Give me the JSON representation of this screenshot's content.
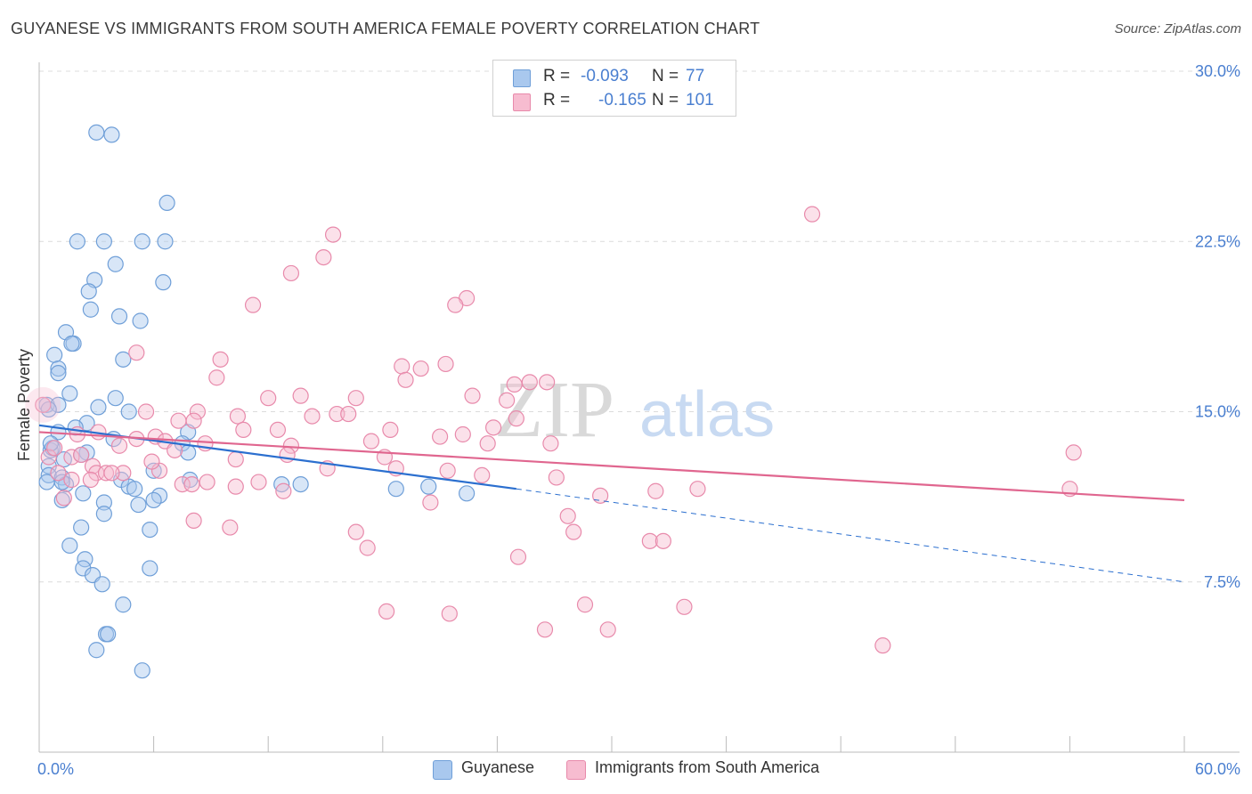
{
  "title": "GUYANESE VS IMMIGRANTS FROM SOUTH AMERICA FEMALE POVERTY CORRELATION CHART",
  "source": "Source: ZipAtlas.com",
  "legend": {
    "rows": [
      {
        "r_label": "R =",
        "r_value": "-0.093",
        "n_label": "N =",
        "n_value": "77"
      },
      {
        "r_label": "R =",
        "r_value": "-0.165",
        "n_label": "N =",
        "n_value": "101"
      }
    ]
  },
  "bottom_legend": [
    "Guyanese",
    "Immigrants from South America"
  ],
  "watermark": {
    "zip": "ZIP",
    "atlas": "atlas"
  },
  "colors": {
    "guyanese_fill": "#a9c8ee",
    "guyanese_stroke": "#6f9fd8",
    "guyanese_line": "#2b6fcf",
    "immig_fill": "#f7bcd0",
    "immig_stroke": "#e88aab",
    "immig_line": "#e0668f",
    "axis_label": "#4a7fd0",
    "grid": "#dcdcdc"
  },
  "chart_data": {
    "type": "scatter",
    "xlabel": "",
    "ylabel": "Female Poverty",
    "xlim": [
      0,
      60
    ],
    "ylim": [
      0,
      30
    ],
    "x_tick_labels": [
      "0.0%",
      "60.0%"
    ],
    "y_ticks": [
      7.5,
      15.0,
      22.5,
      30.0
    ],
    "y_tick_labels": [
      "7.5%",
      "15.0%",
      "22.5%",
      "30.0%"
    ],
    "grid": "horizontal dashed",
    "legend_placement": "top-center",
    "series": [
      {
        "name": "Guyanese",
        "trend": {
          "x0": 0,
          "y0": 14.4,
          "x1": 25,
          "y1": 11.6,
          "dashed_to": {
            "x": 60,
            "y": 7.5
          }
        },
        "points": [
          [
            3.0,
            27.3
          ],
          [
            3.8,
            27.2
          ],
          [
            6.7,
            24.2
          ],
          [
            2.0,
            22.5
          ],
          [
            3.4,
            22.5
          ],
          [
            5.4,
            22.5
          ],
          [
            6.6,
            22.5
          ],
          [
            4.0,
            21.5
          ],
          [
            2.9,
            20.8
          ],
          [
            6.5,
            20.7
          ],
          [
            2.6,
            20.3
          ],
          [
            2.7,
            19.5
          ],
          [
            4.2,
            19.2
          ],
          [
            5.3,
            19.0
          ],
          [
            1.4,
            18.5
          ],
          [
            1.8,
            18.0
          ],
          [
            1.7,
            18.0
          ],
          [
            0.8,
            17.5
          ],
          [
            4.4,
            17.3
          ],
          [
            1.0,
            16.9
          ],
          [
            1.0,
            16.7
          ],
          [
            1.6,
            15.8
          ],
          [
            4.0,
            15.6
          ],
          [
            0.4,
            15.3
          ],
          [
            1.0,
            15.3
          ],
          [
            3.1,
            15.2
          ],
          [
            4.7,
            15.0
          ],
          [
            2.5,
            14.5
          ],
          [
            1.9,
            14.3
          ],
          [
            7.8,
            14.1
          ],
          [
            3.9,
            13.8
          ],
          [
            7.5,
            13.6
          ],
          [
            0.6,
            13.3
          ],
          [
            0.7,
            13.4
          ],
          [
            2.5,
            13.2
          ],
          [
            7.8,
            13.2
          ],
          [
            1.3,
            12.9
          ],
          [
            0.5,
            12.6
          ],
          [
            6.0,
            12.4
          ],
          [
            0.5,
            12.2
          ],
          [
            1.2,
            12.1
          ],
          [
            4.3,
            12.0
          ],
          [
            7.9,
            12.0
          ],
          [
            1.4,
            11.8
          ],
          [
            12.7,
            11.8
          ],
          [
            13.7,
            11.8
          ],
          [
            18.7,
            11.6
          ],
          [
            20.4,
            11.7
          ],
          [
            0.4,
            11.9
          ],
          [
            4.7,
            11.7
          ],
          [
            1.2,
            11.9
          ],
          [
            2.3,
            11.4
          ],
          [
            6.3,
            11.3
          ],
          [
            1.2,
            11.1
          ],
          [
            3.4,
            11.0
          ],
          [
            6.0,
            11.1
          ],
          [
            5.2,
            10.9
          ],
          [
            22.4,
            11.4
          ],
          [
            3.4,
            10.5
          ],
          [
            2.2,
            9.9
          ],
          [
            5.8,
            9.8
          ],
          [
            1.6,
            9.1
          ],
          [
            2.4,
            8.5
          ],
          [
            2.3,
            8.1
          ],
          [
            5.8,
            8.1
          ],
          [
            2.8,
            7.8
          ],
          [
            3.3,
            7.4
          ],
          [
            4.4,
            6.5
          ],
          [
            3.5,
            5.2
          ],
          [
            3.6,
            5.2
          ],
          [
            3.0,
            4.5
          ],
          [
            5.4,
            3.6
          ],
          [
            1.0,
            14.1
          ],
          [
            0.6,
            13.6
          ],
          [
            0.5,
            15.1
          ],
          [
            5.0,
            11.6
          ],
          [
            2.2,
            13.1
          ]
        ]
      },
      {
        "name": "Immigrants from South America",
        "trend": {
          "x0": 0,
          "y0": 14.1,
          "x1": 60,
          "y1": 11.1
        },
        "points": [
          [
            40.5,
            23.7
          ],
          [
            15.4,
            22.8
          ],
          [
            14.9,
            21.8
          ],
          [
            13.2,
            21.1
          ],
          [
            22.4,
            20.0
          ],
          [
            11.2,
            19.7
          ],
          [
            21.8,
            19.7
          ],
          [
            5.1,
            17.6
          ],
          [
            9.5,
            17.3
          ],
          [
            21.3,
            17.1
          ],
          [
            19.0,
            17.0
          ],
          [
            20.0,
            16.9
          ],
          [
            9.3,
            16.5
          ],
          [
            19.2,
            16.4
          ],
          [
            24.9,
            16.2
          ],
          [
            25.7,
            16.3
          ],
          [
            26.6,
            16.3
          ],
          [
            12.0,
            15.6
          ],
          [
            13.7,
            15.7
          ],
          [
            16.6,
            15.6
          ],
          [
            22.7,
            15.7
          ],
          [
            24.5,
            15.5
          ],
          [
            5.6,
            15.0
          ],
          [
            8.3,
            15.0
          ],
          [
            10.4,
            14.8
          ],
          [
            14.3,
            14.8
          ],
          [
            15.6,
            14.9
          ],
          [
            16.2,
            14.9
          ],
          [
            25.0,
            14.7
          ],
          [
            7.3,
            14.6
          ],
          [
            8.1,
            14.6
          ],
          [
            23.8,
            14.3
          ],
          [
            10.7,
            14.2
          ],
          [
            12.5,
            14.2
          ],
          [
            18.4,
            14.2
          ],
          [
            3.1,
            14.1
          ],
          [
            21.0,
            13.9
          ],
          [
            22.2,
            14.0
          ],
          [
            5.1,
            13.8
          ],
          [
            6.1,
            13.9
          ],
          [
            6.6,
            13.7
          ],
          [
            8.7,
            13.6
          ],
          [
            17.4,
            13.7
          ],
          [
            23.5,
            13.6
          ],
          [
            26.8,
            13.6
          ],
          [
            4.2,
            13.5
          ],
          [
            13.2,
            13.5
          ],
          [
            7.1,
            13.3
          ],
          [
            13.0,
            13.1
          ],
          [
            18.1,
            13.0
          ],
          [
            0.5,
            13.0
          ],
          [
            1.7,
            13.0
          ],
          [
            2.2,
            13.1
          ],
          [
            54.2,
            13.2
          ],
          [
            10.3,
            12.9
          ],
          [
            2.8,
            12.6
          ],
          [
            15.1,
            12.5
          ],
          [
            18.7,
            12.5
          ],
          [
            21.4,
            12.4
          ],
          [
            3.0,
            12.3
          ],
          [
            3.5,
            12.3
          ],
          [
            4.4,
            12.3
          ],
          [
            1.0,
            12.3
          ],
          [
            6.3,
            12.4
          ],
          [
            23.2,
            12.2
          ],
          [
            1.7,
            12.0
          ],
          [
            2.7,
            12.0
          ],
          [
            8.8,
            11.9
          ],
          [
            11.5,
            11.9
          ],
          [
            27.1,
            12.1
          ],
          [
            7.5,
            11.8
          ],
          [
            8.0,
            11.8
          ],
          [
            10.3,
            11.7
          ],
          [
            32.3,
            11.5
          ],
          [
            34.5,
            11.6
          ],
          [
            54.0,
            11.6
          ],
          [
            12.8,
            11.5
          ],
          [
            29.4,
            11.3
          ],
          [
            1.3,
            11.2
          ],
          [
            20.5,
            11.0
          ],
          [
            8.1,
            10.2
          ],
          [
            27.7,
            10.4
          ],
          [
            10.0,
            9.9
          ],
          [
            16.6,
            9.7
          ],
          [
            28.0,
            9.7
          ],
          [
            32.0,
            9.3
          ],
          [
            32.7,
            9.3
          ],
          [
            17.2,
            9.0
          ],
          [
            25.1,
            8.6
          ],
          [
            28.6,
            6.5
          ],
          [
            33.8,
            6.4
          ],
          [
            18.2,
            6.2
          ],
          [
            21.5,
            6.1
          ],
          [
            26.5,
            5.4
          ],
          [
            29.8,
            5.4
          ],
          [
            44.2,
            4.7
          ],
          [
            0.2,
            15.3
          ],
          [
            2.0,
            14.0
          ],
          [
            3.8,
            12.3
          ],
          [
            0.8,
            13.4
          ],
          [
            5.9,
            12.8
          ]
        ]
      }
    ]
  }
}
